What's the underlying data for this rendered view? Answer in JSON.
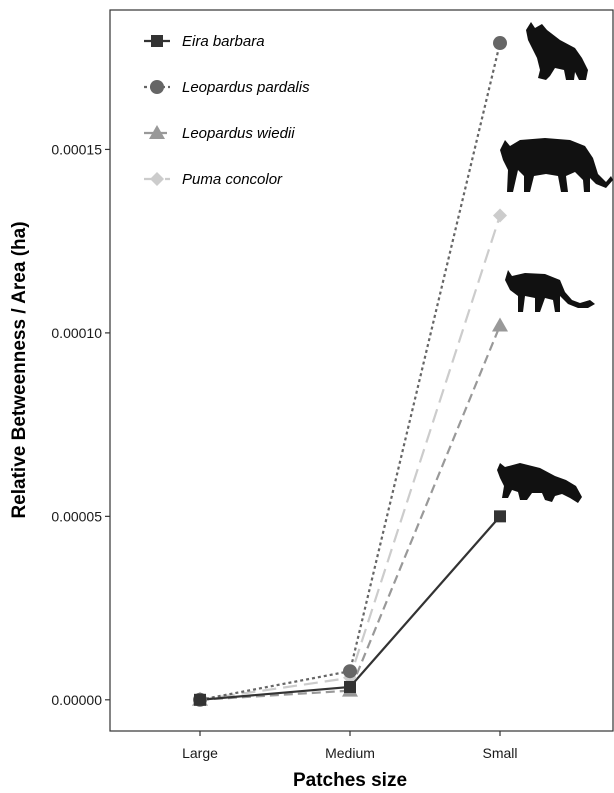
{
  "chart_data": {
    "type": "line",
    "title": "",
    "xlabel": "Patches size",
    "ylabel": "Relative Betweenness / Area (ha)",
    "categories": [
      "Large",
      "Medium",
      "Small"
    ],
    "yticks": [
      "0.00000",
      "0.00005",
      "0.00010",
      "0.00015"
    ],
    "ytick_values": [
      0,
      5e-05,
      0.0001,
      0.00015
    ],
    "ylim": [
      -8.5e-06,
      0.000188
    ],
    "grid": false,
    "legend_position": "top-left",
    "series": [
      {
        "name": "Eira barbara",
        "values": [
          0,
          3.5e-06,
          5e-05
        ],
        "color": "#333333",
        "marker": "square",
        "dash": "solid",
        "silhouette": "tayra-icon"
      },
      {
        "name": "Leopardus pardalis",
        "values": [
          0,
          7.8e-06,
          0.000179
        ],
        "color": "#666666",
        "marker": "circle",
        "dash": "dotted",
        "silhouette": "ocelot-icon"
      },
      {
        "name": "Leopardus wiedii",
        "values": [
          0,
          2.5e-06,
          0.000102
        ],
        "color": "#999999",
        "marker": "triangle",
        "dash": "dashed",
        "silhouette": "margay-icon"
      },
      {
        "name": "Puma concolor",
        "values": [
          0,
          6e-06,
          0.000132
        ],
        "color": "#cccccc",
        "marker": "diamond",
        "dash": "longdash",
        "silhouette": "puma-icon"
      }
    ]
  }
}
